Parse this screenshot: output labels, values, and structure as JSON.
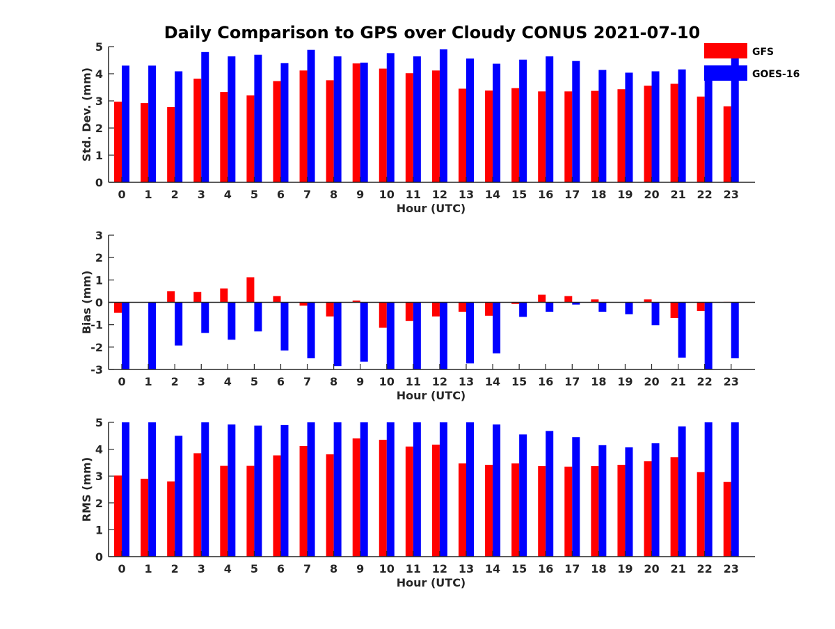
{
  "title": "Daily Comparison to GPS over Cloudy CONUS 2021-07-10",
  "colors": {
    "GFS": "#ff0000",
    "GOES-16": "#0000ff",
    "axis": "#262626"
  },
  "legend": {
    "placement": "top-right",
    "items": [
      {
        "name": "GFS",
        "color": "#ff0000"
      },
      {
        "name": "GOES-16",
        "color": "#0000ff"
      }
    ]
  },
  "chart_data": [
    {
      "type": "bar",
      "xlabel": "Hour (UTC)",
      "ylabel": "Std. Dev. (mm)",
      "ylim": [
        0,
        5
      ],
      "yticks": [
        0,
        1,
        2,
        3,
        4,
        5
      ],
      "grid": false,
      "categories": [
        "0",
        "1",
        "2",
        "3",
        "4",
        "5",
        "6",
        "7",
        "8",
        "9",
        "10",
        "11",
        "12",
        "13",
        "14",
        "15",
        "16",
        "17",
        "18",
        "19",
        "20",
        "21",
        "22",
        "23"
      ],
      "series": [
        {
          "name": "GFS",
          "color": "#ff0000",
          "values": [
            2.97,
            2.92,
            2.77,
            3.82,
            3.33,
            3.2,
            3.73,
            4.12,
            3.76,
            4.38,
            4.19,
            4.02,
            4.12,
            3.45,
            3.38,
            3.47,
            3.35,
            3.35,
            3.37,
            3.43,
            3.56,
            3.63,
            3.16,
            2.8
          ]
        },
        {
          "name": "GOES-16",
          "color": "#0000ff",
          "values": [
            4.3,
            4.3,
            4.09,
            4.8,
            4.64,
            4.7,
            4.39,
            4.88,
            4.64,
            4.41,
            4.76,
            4.64,
            4.9,
            4.56,
            4.37,
            4.52,
            4.64,
            4.47,
            4.14,
            4.04,
            4.09,
            4.16,
            4.03,
            4.6
          ]
        }
      ]
    },
    {
      "type": "bar",
      "xlabel": "Hour (UTC)",
      "ylabel": "Bias (mm)",
      "ylim": [
        -3,
        3
      ],
      "yticks": [
        -3,
        -2,
        -1,
        0,
        1,
        2,
        3
      ],
      "grid": false,
      "zero_line": true,
      "categories": [
        "0",
        "1",
        "2",
        "3",
        "4",
        "5",
        "6",
        "7",
        "8",
        "9",
        "10",
        "11",
        "12",
        "13",
        "14",
        "15",
        "16",
        "17",
        "18",
        "19",
        "20",
        "21",
        "22",
        "23"
      ],
      "series": [
        {
          "name": "GFS",
          "color": "#ff0000",
          "values": [
            -0.47,
            0.0,
            0.5,
            0.46,
            0.62,
            1.12,
            0.28,
            -0.15,
            -0.63,
            0.08,
            -1.13,
            -0.83,
            -0.63,
            -0.42,
            -0.6,
            -0.07,
            0.34,
            0.28,
            0.13,
            0.0,
            0.13,
            -0.7,
            -0.39,
            0.02
          ]
        },
        {
          "name": "GOES-16",
          "color": "#0000ff",
          "values": [
            -3.0,
            -3.0,
            -1.93,
            -1.37,
            -1.67,
            -1.3,
            -2.15,
            -2.5,
            -2.85,
            -2.65,
            -3.0,
            -3.0,
            -3.0,
            -2.73,
            -2.28,
            -0.65,
            -0.42,
            -0.1,
            -0.42,
            -0.53,
            -1.02,
            -2.47,
            -3.0,
            -2.5
          ]
        }
      ]
    },
    {
      "type": "bar",
      "xlabel": "Hour (UTC)",
      "ylabel": "RMS (mm)",
      "ylim": [
        0,
        5
      ],
      "yticks": [
        0,
        1,
        2,
        3,
        4,
        5
      ],
      "grid": false,
      "categories": [
        "0",
        "1",
        "2",
        "3",
        "4",
        "5",
        "6",
        "7",
        "8",
        "9",
        "10",
        "11",
        "12",
        "13",
        "14",
        "15",
        "16",
        "17",
        "18",
        "19",
        "20",
        "21",
        "22",
        "23"
      ],
      "series": [
        {
          "name": "GFS",
          "color": "#ff0000",
          "values": [
            3.02,
            2.9,
            2.8,
            3.85,
            3.38,
            3.38,
            3.77,
            4.12,
            3.81,
            4.4,
            4.35,
            4.1,
            4.17,
            3.47,
            3.42,
            3.47,
            3.37,
            3.35,
            3.37,
            3.42,
            3.55,
            3.7,
            3.15,
            2.78
          ]
        },
        {
          "name": "GOES-16",
          "color": "#0000ff",
          "values": [
            5.0,
            5.0,
            4.5,
            5.0,
            4.92,
            4.88,
            4.9,
            5.0,
            5.0,
            5.0,
            5.0,
            5.0,
            5.0,
            5.0,
            4.92,
            4.55,
            4.68,
            4.45,
            4.15,
            4.07,
            4.22,
            4.85,
            5.0,
            5.0
          ]
        }
      ]
    }
  ]
}
